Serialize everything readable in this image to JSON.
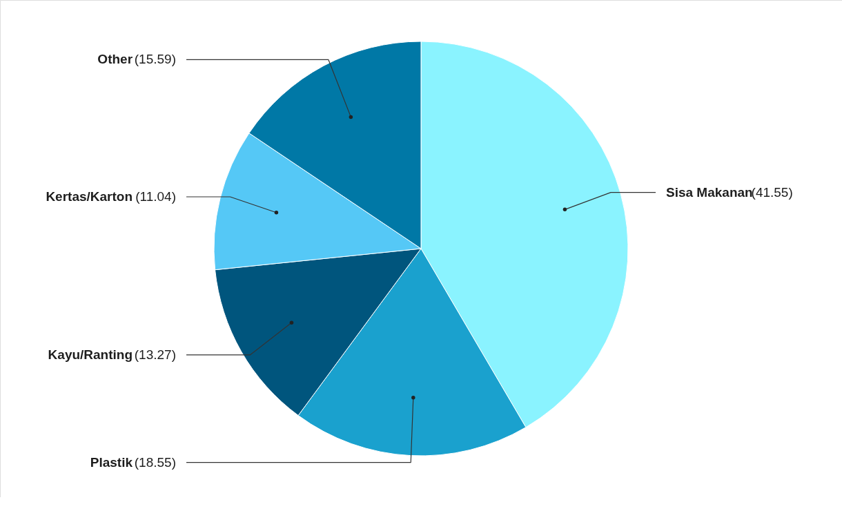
{
  "chart_data": {
    "type": "pie",
    "categories": [
      "Sisa Makanan",
      "Plastik",
      "Kayu/Ranting",
      "Kertas/Karton",
      "Other"
    ],
    "values": [
      41.55,
      18.55,
      13.27,
      11.04,
      15.59
    ],
    "colors": [
      "#8af3ff",
      "#1aa1ce",
      "#00557d",
      "#55c8f6",
      "#0078a6"
    ],
    "value_labels": [
      "(41.55)",
      "(18.55)",
      "(13.27)",
      "(11.04)",
      "(15.59)"
    ]
  }
}
